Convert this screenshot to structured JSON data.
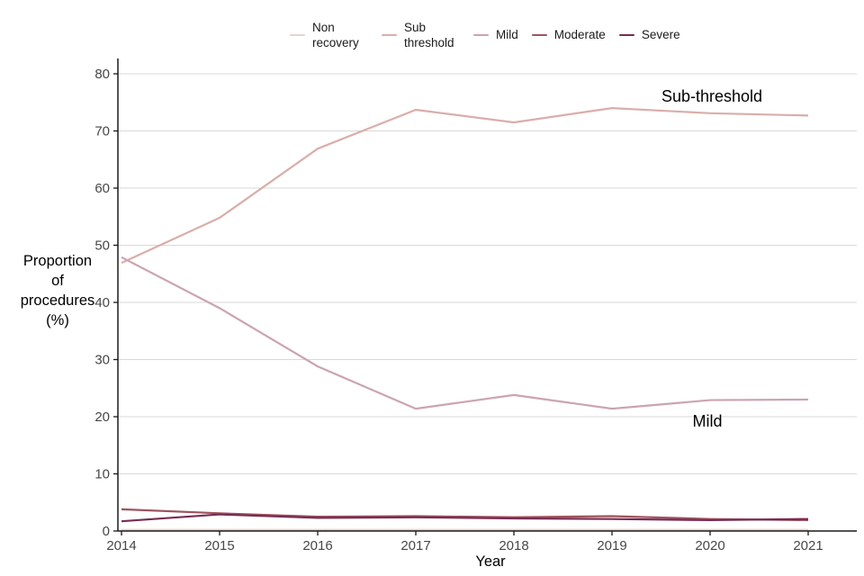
{
  "chart_data": {
    "type": "line",
    "title": "",
    "xlabel": "Year",
    "ylabel": "Proportion of procedures (%)",
    "ylabel_lines": [
      "Proportion",
      "of",
      "procedures",
      "(%)"
    ],
    "x": [
      2014,
      2015,
      2016,
      2017,
      2018,
      2019,
      2020,
      2021
    ],
    "y_ticks": [
      0,
      10,
      20,
      30,
      40,
      50,
      60,
      70,
      80
    ],
    "ylim": [
      0,
      80
    ],
    "grid": "horizontal-major-only",
    "legend_position": "top",
    "series": [
      {
        "name": "Non recovery",
        "color": "#e8d2ce",
        "values": [
          0.2,
          0.2,
          0.2,
          0.2,
          0.2,
          0.2,
          0.2,
          0.2
        ]
      },
      {
        "name": "Sub threshold",
        "color": "#d9aeaa",
        "values": [
          46.9,
          54.8,
          66.9,
          73.7,
          71.5,
          74.0,
          73.1,
          72.7
        ]
      },
      {
        "name": "Mild",
        "color": "#cba4b0",
        "values": [
          47.9,
          39.0,
          28.8,
          21.4,
          23.8,
          21.4,
          22.9,
          23.0
        ]
      },
      {
        "name": "Moderate",
        "color": "#9e535f",
        "values": [
          3.8,
          3.1,
          2.5,
          2.6,
          2.4,
          2.6,
          2.1,
          1.9
        ]
      },
      {
        "name": "Severe",
        "color": "#782c52",
        "values": [
          1.7,
          2.9,
          2.3,
          2.4,
          2.2,
          2.1,
          1.9,
          2.1
        ]
      }
    ],
    "annotations": [
      {
        "text": "Sub-threshold"
      },
      {
        "text": "Mild"
      }
    ],
    "colors": {
      "grid": "#d9d9d9",
      "axis": "#1a1a1a",
      "tick_label": "#474747"
    }
  }
}
